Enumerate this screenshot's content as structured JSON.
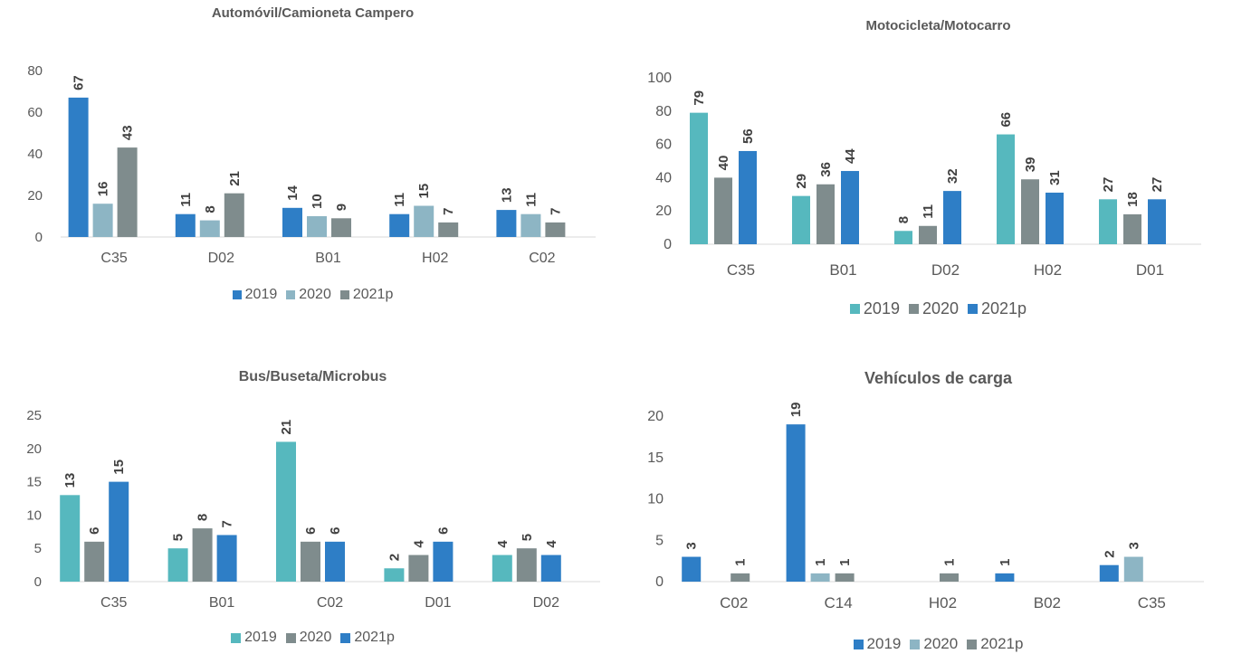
{
  "chart_data": [
    {
      "type": "bar",
      "title": "Automóvil/Camioneta Campero",
      "categories": [
        "C35",
        "D02",
        "B01",
        "H02",
        "C02"
      ],
      "yticks": [
        "0",
        "20",
        "40",
        "60",
        "80"
      ],
      "ylim": [
        0,
        80
      ],
      "legend": "bottom",
      "colors": [
        "#2E7EC6",
        "#8DB5C4",
        "#7F8C8D"
      ],
      "series": [
        {
          "name": "2019",
          "values": [
            67,
            11,
            14,
            11,
            13
          ]
        },
        {
          "name": "2020",
          "values": [
            16,
            8,
            10,
            15,
            11
          ]
        },
        {
          "name": "2021p",
          "values": [
            43,
            21,
            9,
            7,
            7
          ]
        }
      ]
    },
    {
      "type": "bar",
      "title": "Motocicleta/Motocarro",
      "categories": [
        "C35",
        "B01",
        "D02",
        "H02",
        "D01"
      ],
      "yticks": [
        "0",
        "20",
        "40",
        "60",
        "80",
        "100"
      ],
      "ylim": [
        0,
        100
      ],
      "legend": "bottom",
      "colors": [
        "#56B8BE",
        "#7F8C8D",
        "#2E7EC6"
      ],
      "series": [
        {
          "name": "2019",
          "values": [
            79,
            29,
            8,
            66,
            27
          ]
        },
        {
          "name": "2020",
          "values": [
            40,
            36,
            11,
            39,
            18
          ]
        },
        {
          "name": "2021p",
          "values": [
            56,
            44,
            32,
            31,
            27
          ]
        }
      ]
    },
    {
      "type": "bar",
      "title": "Bus/Buseta/Microbus",
      "categories": [
        "C35",
        "B01",
        "C02",
        "D01",
        "D02"
      ],
      "yticks": [
        "0",
        "5",
        "10",
        "15",
        "20",
        "25"
      ],
      "ylim": [
        0,
        25
      ],
      "legend": "bottom",
      "colors": [
        "#56B8BE",
        "#7F8C8D",
        "#2E7EC6"
      ],
      "series": [
        {
          "name": "2019",
          "values": [
            13,
            5,
            21,
            2,
            4
          ]
        },
        {
          "name": "2020",
          "values": [
            6,
            8,
            6,
            4,
            5
          ]
        },
        {
          "name": "2021p",
          "values": [
            15,
            7,
            6,
            6,
            4
          ]
        }
      ]
    },
    {
      "type": "bar",
      "title": "Vehículos de carga",
      "categories": [
        "C02",
        "C14",
        "H02",
        "B02",
        "C35"
      ],
      "yticks": [
        "0",
        "5",
        "10",
        "15",
        "20"
      ],
      "ylim": [
        0,
        20
      ],
      "legend": "bottom",
      "colors": [
        "#2E7EC6",
        "#8DB5C4",
        "#7F8C8D"
      ],
      "series": [
        {
          "name": "2019",
          "values": [
            3,
            19,
            null,
            1,
            2
          ]
        },
        {
          "name": "2020",
          "values": [
            null,
            1,
            null,
            null,
            3
          ]
        },
        {
          "name": "2021p",
          "values": [
            1,
            1,
            1,
            null,
            null
          ]
        }
      ]
    }
  ]
}
